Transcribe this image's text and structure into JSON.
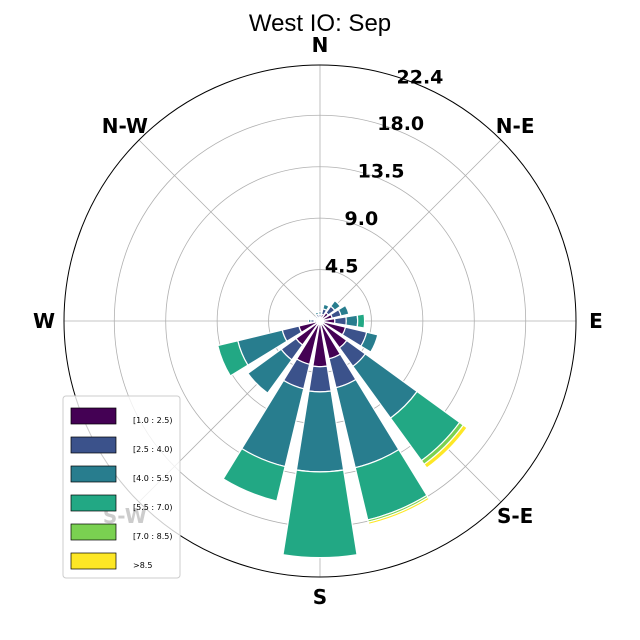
{
  "chart_data": {
    "type": "windrose",
    "title": "West IO: Sep",
    "directions": [
      "N",
      "NNE",
      "NE",
      "ENE",
      "E",
      "ESE",
      "SE",
      "SSE",
      "S",
      "SSW",
      "SW",
      "WSW",
      "W",
      "WNW",
      "NW",
      "NNW"
    ],
    "direction_labels": [
      {
        "dir": "N",
        "label": "N",
        "angle_deg": 0
      },
      {
        "dir": "NE",
        "label": "N-E",
        "angle_deg": 45
      },
      {
        "dir": "E",
        "label": "E",
        "angle_deg": 90
      },
      {
        "dir": "SE",
        "label": "S-E",
        "angle_deg": 135
      },
      {
        "dir": "S",
        "label": "S",
        "angle_deg": 180
      },
      {
        "dir": "SW",
        "label": "S-W",
        "angle_deg": 225
      },
      {
        "dir": "W",
        "label": "W",
        "angle_deg": 270
      },
      {
        "dir": "NW",
        "label": "N-W",
        "angle_deg": 315
      }
    ],
    "radial_ticks": [
      4.5,
      9.0,
      13.5,
      18.0,
      22.4
    ],
    "radial_tick_labels": [
      "4.5",
      "9.0",
      "13.5",
      "18.0",
      "22.4"
    ],
    "r_max": 22.4,
    "radial_label_angle_deg": 22.5,
    "bins": [
      {
        "label": "[1.0 : 2.5)",
        "color": "#440154"
      },
      {
        "label": "[2.5 : 4.0)",
        "color": "#3b528b"
      },
      {
        "label": "[4.0 : 5.5)",
        "color": "#287d8e"
      },
      {
        "label": "[5.5 : 7.0)",
        "color": "#22a884"
      },
      {
        "label": "[7.0 : 8.5)",
        "color": "#7ad151"
      },
      {
        "label": ">8.5",
        "color": "#fde725"
      }
    ],
    "frequencies": [
      [
        0.3,
        0.3,
        0.2,
        0.0,
        0.0,
        0.0
      ],
      [
        0.6,
        0.5,
        0.4,
        0.0,
        0.0,
        0.0
      ],
      [
        0.9,
        0.7,
        0.6,
        0.0,
        0.0,
        0.0
      ],
      [
        1.1,
        0.8,
        0.7,
        0.0,
        0.0,
        0.0
      ],
      [
        1.3,
        1.0,
        1.0,
        0.6,
        0.0,
        0.0
      ],
      [
        2.3,
        1.9,
        1.0,
        0.0,
        0.0,
        0.0
      ],
      [
        2.9,
        2.0,
        5.6,
        4.6,
        0.4,
        0.4
      ],
      [
        3.4,
        2.6,
        7.2,
        4.7,
        0.2,
        0.2
      ],
      [
        4.0,
        2.2,
        7.0,
        7.5,
        0.0,
        0.0
      ],
      [
        3.9,
        2.2,
        7.0,
        3.1,
        0.0,
        0.0
      ],
      [
        2.6,
        1.6,
        3.6,
        0.0,
        0.0,
        0.0
      ],
      [
        1.9,
        1.5,
        4.0,
        1.8,
        0.0,
        0.0
      ],
      [
        0.5,
        0.3,
        0.2,
        0.0,
        0.0,
        0.0
      ],
      [
        0.2,
        0.1,
        0.1,
        0.0,
        0.0,
        0.0
      ],
      [
        0.3,
        0.2,
        0.0,
        0.0,
        0.0,
        0.0
      ],
      [
        0.3,
        0.3,
        0.2,
        0.0,
        0.0,
        0.0
      ]
    ],
    "legend_placement": "lower-left",
    "grid": true
  }
}
